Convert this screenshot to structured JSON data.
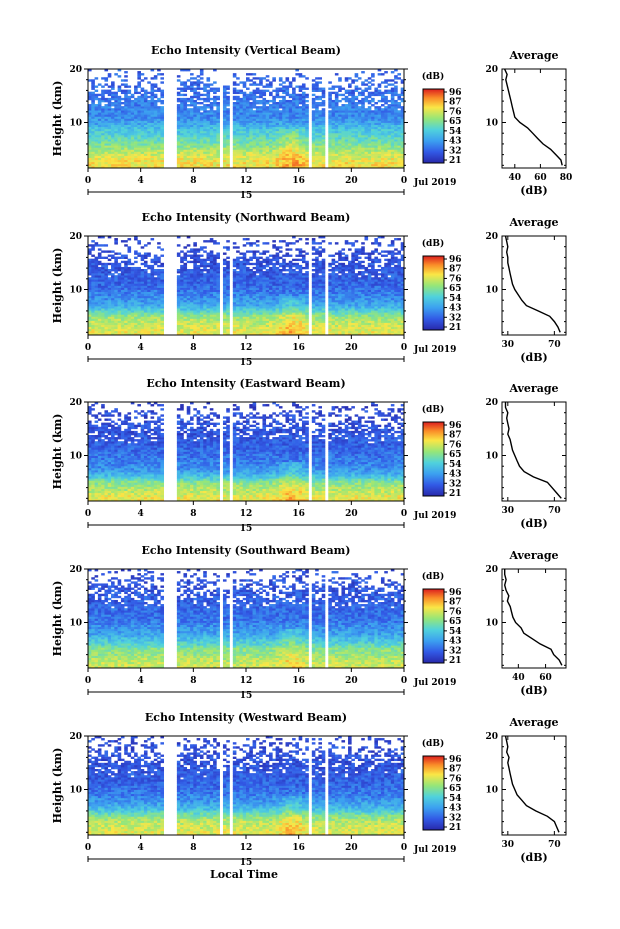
{
  "figure": {
    "xlabel": "Local Time",
    "date_label": "15",
    "date_right": "Jul 2019",
    "colorbar_unit": "(dB)",
    "avg_title": "Average",
    "avg_unit": "(dB)"
  },
  "chart_data": [
    {
      "type": "heatmap",
      "title": "Echo Intensity (Vertical Beam)",
      "xlabel": "Local Time",
      "ylabel": "Height (km)",
      "x_ticks": [
        "0",
        "4",
        "8",
        "12",
        "16",
        "20",
        "0"
      ],
      "xlim": [
        0,
        24
      ],
      "y_ticks": [
        "20",
        "10"
      ],
      "ylim": [
        1.5,
        20
      ],
      "colorbar_ticks": [
        "96",
        "87",
        "76",
        "65",
        "54",
        "43",
        "32",
        "21"
      ],
      "colorbar_range": [
        21,
        96
      ],
      "data_gaps_hours": [
        [
          5.8,
          6.7
        ],
        [
          9.9,
          10.3
        ],
        [
          10.8,
          11.1
        ],
        [
          16.8,
          17.1
        ],
        [
          18.0,
          18.3
        ]
      ],
      "profile": {
        "title": "Average",
        "xlabel": "(dB)",
        "x_ticks": [
          "40",
          "60",
          "80"
        ],
        "xlim": [
          30,
          80
        ],
        "y_ticks": [
          "20",
          "10"
        ],
        "height_km": [
          2,
          3,
          4,
          5,
          6,
          7,
          8,
          9,
          10,
          11,
          12,
          13,
          14,
          15,
          16,
          17,
          18,
          19,
          20
        ],
        "values_db": [
          77,
          76,
          72,
          68,
          62,
          58,
          54,
          50,
          44,
          40,
          39,
          38,
          37,
          36,
          35,
          34,
          33,
          34,
          32
        ]
      }
    },
    {
      "type": "heatmap",
      "title": "Echo Intensity (Northward Beam)",
      "xlabel": "Local Time",
      "ylabel": "Height (km)",
      "x_ticks": [
        "0",
        "4",
        "8",
        "12",
        "16",
        "20",
        "0"
      ],
      "xlim": [
        0,
        24
      ],
      "y_ticks": [
        "20",
        "10"
      ],
      "ylim": [
        1.5,
        20
      ],
      "colorbar_ticks": [
        "96",
        "87",
        "76",
        "65",
        "54",
        "43",
        "32",
        "21"
      ],
      "colorbar_range": [
        21,
        96
      ],
      "data_gaps_hours": [
        [
          5.8,
          6.7
        ],
        [
          9.9,
          10.3
        ],
        [
          10.8,
          11.1
        ],
        [
          16.8,
          17.1
        ],
        [
          18.0,
          18.3
        ]
      ],
      "profile": {
        "title": "Average",
        "xlabel": "(dB)",
        "x_ticks": [
          "30",
          "70"
        ],
        "xlim": [
          25,
          80
        ],
        "y_ticks": [
          "20",
          "10"
        ],
        "height_km": [
          2,
          3,
          4,
          5,
          6,
          7,
          8,
          9,
          10,
          11,
          12,
          13,
          14,
          15,
          16,
          17,
          18,
          19,
          20
        ],
        "values_db": [
          75,
          73,
          70,
          66,
          56,
          46,
          42,
          39,
          36,
          34,
          33,
          32,
          31,
          30,
          30,
          29,
          30,
          29,
          28
        ]
      }
    },
    {
      "type": "heatmap",
      "title": "Echo Intensity (Eastward Beam)",
      "xlabel": "Local Time",
      "ylabel": "Height (km)",
      "x_ticks": [
        "0",
        "4",
        "8",
        "12",
        "16",
        "20",
        "0"
      ],
      "xlim": [
        0,
        24
      ],
      "y_ticks": [
        "20",
        "10"
      ],
      "ylim": [
        1.5,
        20
      ],
      "colorbar_ticks": [
        "96",
        "87",
        "76",
        "65",
        "54",
        "43",
        "32",
        "21"
      ],
      "colorbar_range": [
        21,
        96
      ],
      "data_gaps_hours": [
        [
          5.8,
          6.7
        ],
        [
          9.9,
          10.3
        ],
        [
          10.8,
          11.1
        ],
        [
          16.8,
          17.1
        ],
        [
          18.0,
          18.3
        ]
      ],
      "profile": {
        "title": "Average",
        "xlabel": "(dB)",
        "x_ticks": [
          "30",
          "70"
        ],
        "xlim": [
          25,
          80
        ],
        "y_ticks": [
          "20",
          "10"
        ],
        "height_km": [
          2,
          3,
          4,
          5,
          6,
          7,
          8,
          9,
          10,
          11,
          12,
          13,
          14,
          15,
          16,
          17,
          18,
          19,
          20
        ],
        "values_db": [
          76,
          72,
          68,
          64,
          52,
          44,
          40,
          38,
          36,
          34,
          33,
          32,
          30,
          31,
          30,
          29,
          30,
          28,
          28
        ]
      }
    },
    {
      "type": "heatmap",
      "title": "Echo Intensity (Southward Beam)",
      "xlabel": "Local Time",
      "ylabel": "Height (km)",
      "x_ticks": [
        "0",
        "4",
        "8",
        "12",
        "16",
        "20",
        "0"
      ],
      "xlim": [
        0,
        24
      ],
      "y_ticks": [
        "20",
        "10"
      ],
      "ylim": [
        1.5,
        20
      ],
      "colorbar_ticks": [
        "96",
        "87",
        "76",
        "65",
        "54",
        "43",
        "32",
        "21"
      ],
      "colorbar_range": [
        21,
        96
      ],
      "data_gaps_hours": [
        [
          5.8,
          6.7
        ],
        [
          9.9,
          10.3
        ],
        [
          10.8,
          11.1
        ],
        [
          16.8,
          17.1
        ],
        [
          18.0,
          18.3
        ]
      ],
      "profile": {
        "title": "Average",
        "xlabel": "(dB)",
        "x_ticks": [
          "40",
          "60"
        ],
        "xlim": [
          28,
          75
        ],
        "y_ticks": [
          "20",
          "10"
        ],
        "height_km": [
          2,
          3,
          4,
          5,
          6,
          7,
          8,
          9,
          10,
          11,
          12,
          13,
          14,
          15,
          16,
          17,
          18,
          19,
          20
        ],
        "values_db": [
          72,
          70,
          66,
          64,
          56,
          50,
          44,
          42,
          38,
          36,
          35,
          34,
          32,
          33,
          31,
          30,
          31,
          30,
          30
        ]
      }
    },
    {
      "type": "heatmap",
      "title": "Echo Intensity (Westward Beam)",
      "xlabel": "Local Time",
      "ylabel": "Height (km)",
      "x_ticks": [
        "0",
        "4",
        "8",
        "12",
        "16",
        "20",
        "0"
      ],
      "xlim": [
        0,
        24
      ],
      "y_ticks": [
        "20",
        "10"
      ],
      "ylim": [
        1.5,
        20
      ],
      "colorbar_ticks": [
        "96",
        "87",
        "76",
        "65",
        "54",
        "43",
        "32",
        "21"
      ],
      "colorbar_range": [
        21,
        96
      ],
      "data_gaps_hours": [
        [
          5.8,
          6.7
        ],
        [
          9.9,
          10.3
        ],
        [
          10.8,
          11.1
        ],
        [
          16.8,
          17.1
        ],
        [
          18.0,
          18.3
        ]
      ],
      "profile": {
        "title": "Average",
        "xlabel": "(dB)",
        "x_ticks": [
          "30",
          "70"
        ],
        "xlim": [
          25,
          80
        ],
        "y_ticks": [
          "20",
          "10"
        ],
        "height_km": [
          2,
          3,
          4,
          5,
          6,
          7,
          8,
          9,
          10,
          11,
          12,
          13,
          14,
          15,
          16,
          17,
          18,
          19,
          20
        ],
        "values_db": [
          74,
          72,
          70,
          64,
          54,
          46,
          42,
          38,
          36,
          34,
          33,
          32,
          31,
          30,
          31,
          29,
          30,
          29,
          28
        ]
      }
    }
  ]
}
